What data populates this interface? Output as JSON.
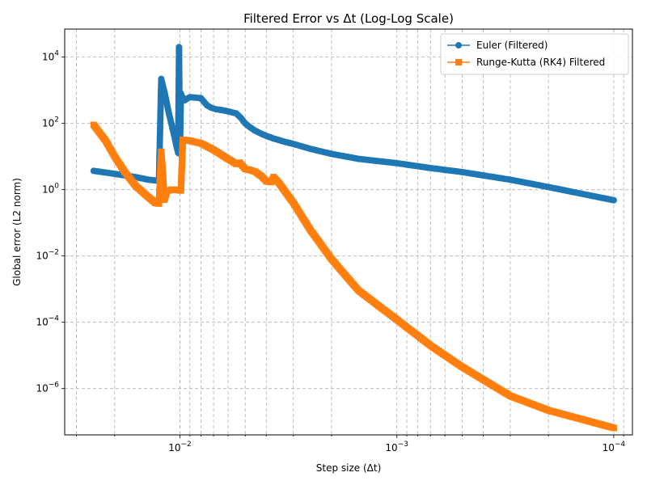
{
  "chart_data": {
    "type": "line",
    "title": "Filtered Error vs Δt (Log-Log Scale)",
    "xlabel": "Step size (Δt)",
    "ylabel": "Global error (L2 norm)",
    "x_scale": "log",
    "y_scale": "log",
    "x_inverted": true,
    "xlim": [
      0.034,
      8.2e-05
    ],
    "ylim": [
      4e-08,
      70000
    ],
    "grid": true,
    "grid_style": "dashed",
    "legend_position": "top-right",
    "x_ticks": [
      {
        "value": 0.01,
        "base": "10",
        "exp": "−2"
      },
      {
        "value": 0.001,
        "base": "10",
        "exp": "−3"
      },
      {
        "value": 0.0001,
        "base": "10",
        "exp": "−4"
      }
    ],
    "y_ticks": [
      {
        "value": 1e-06,
        "base": "10",
        "exp": "−6"
      },
      {
        "value": 0.0001,
        "base": "10",
        "exp": "−4"
      },
      {
        "value": 0.01,
        "base": "10",
        "exp": "−2"
      },
      {
        "value": 1,
        "base": "10",
        "exp": "0"
      },
      {
        "value": 100,
        "base": "10",
        "exp": "2"
      },
      {
        "value": 10000,
        "base": "10",
        "exp": "4"
      }
    ],
    "series": [
      {
        "name": "Euler (Filtered)",
        "color": "#1f77b4",
        "marker": "circle",
        "x": [
          0.025,
          0.02,
          0.016,
          0.014,
          0.013,
          0.012,
          0.0125,
          0.0122,
          0.012,
          0.0118,
          0.0116,
          0.0114,
          0.0112,
          0.011,
          0.0108,
          0.0106,
          0.0104,
          0.0102,
          0.0101,
          0.01,
          0.0099,
          0.0098,
          0.0097,
          0.0096,
          0.0095,
          0.0093,
          0.009,
          0.0085,
          0.008,
          0.0075,
          0.0072,
          0.007,
          0.0068,
          0.0066,
          0.0064,
          0.006,
          0.0055,
          0.0052,
          0.005,
          0.0048,
          0.0045,
          0.0042,
          0.004,
          0.0037,
          0.0033,
          0.003,
          0.0025,
          0.002,
          0.0015,
          0.001,
          0.0007,
          0.0005,
          0.0003,
          0.0002,
          0.0001
        ],
        "y": [
          3.7,
          3.0,
          2.4,
          2.0,
          1.9,
          1.8,
          2.0,
          2200,
          1400,
          900,
          550,
          300,
          180,
          110,
          65,
          40,
          22,
          13,
          20000,
          12,
          800,
          650,
          600,
          520,
          500,
          550,
          620,
          600,
          580,
          350,
          300,
          280,
          265,
          260,
          250,
          230,
          200,
          140,
          100,
          80,
          60,
          48,
          42,
          35,
          28,
          24,
          17,
          12,
          8.5,
          6.3,
          4.5,
          3.4,
          2.0,
          1.2,
          0.48
        ]
      },
      {
        "name": "Runge-Kutta (RK4) Filtered",
        "color": "#ff7f0e",
        "marker": "square",
        "x": [
          0.025,
          0.022,
          0.02,
          0.018,
          0.016,
          0.014,
          0.013,
          0.0125,
          0.0122,
          0.012,
          0.0118,
          0.0115,
          0.011,
          0.0105,
          0.01,
          0.0099,
          0.0097,
          0.009,
          0.008,
          0.007,
          0.006,
          0.0055,
          0.0053,
          0.005,
          0.0048,
          0.0045,
          0.0042,
          0.004,
          0.0038,
          0.0037,
          0.0035,
          0.003,
          0.0025,
          0.002,
          0.0015,
          0.001,
          0.0007,
          0.0005,
          0.0003,
          0.0002,
          0.0001
        ],
        "y": [
          90,
          30,
          10,
          3.5,
          1.3,
          0.6,
          0.4,
          0.38,
          14,
          3.2,
          0.5,
          0.9,
          1.0,
          1.0,
          0.95,
          0.95,
          32,
          30,
          25,
          16,
          8.5,
          6.0,
          6.5,
          4.2,
          4.0,
          3.5,
          2.5,
          1.8,
          1.7,
          2.4,
          1.6,
          0.4,
          0.06,
          0.008,
          0.0009,
          0.00012,
          2e-05,
          4.5e-06,
          6e-07,
          2.2e-07,
          6.5e-08
        ]
      }
    ]
  }
}
